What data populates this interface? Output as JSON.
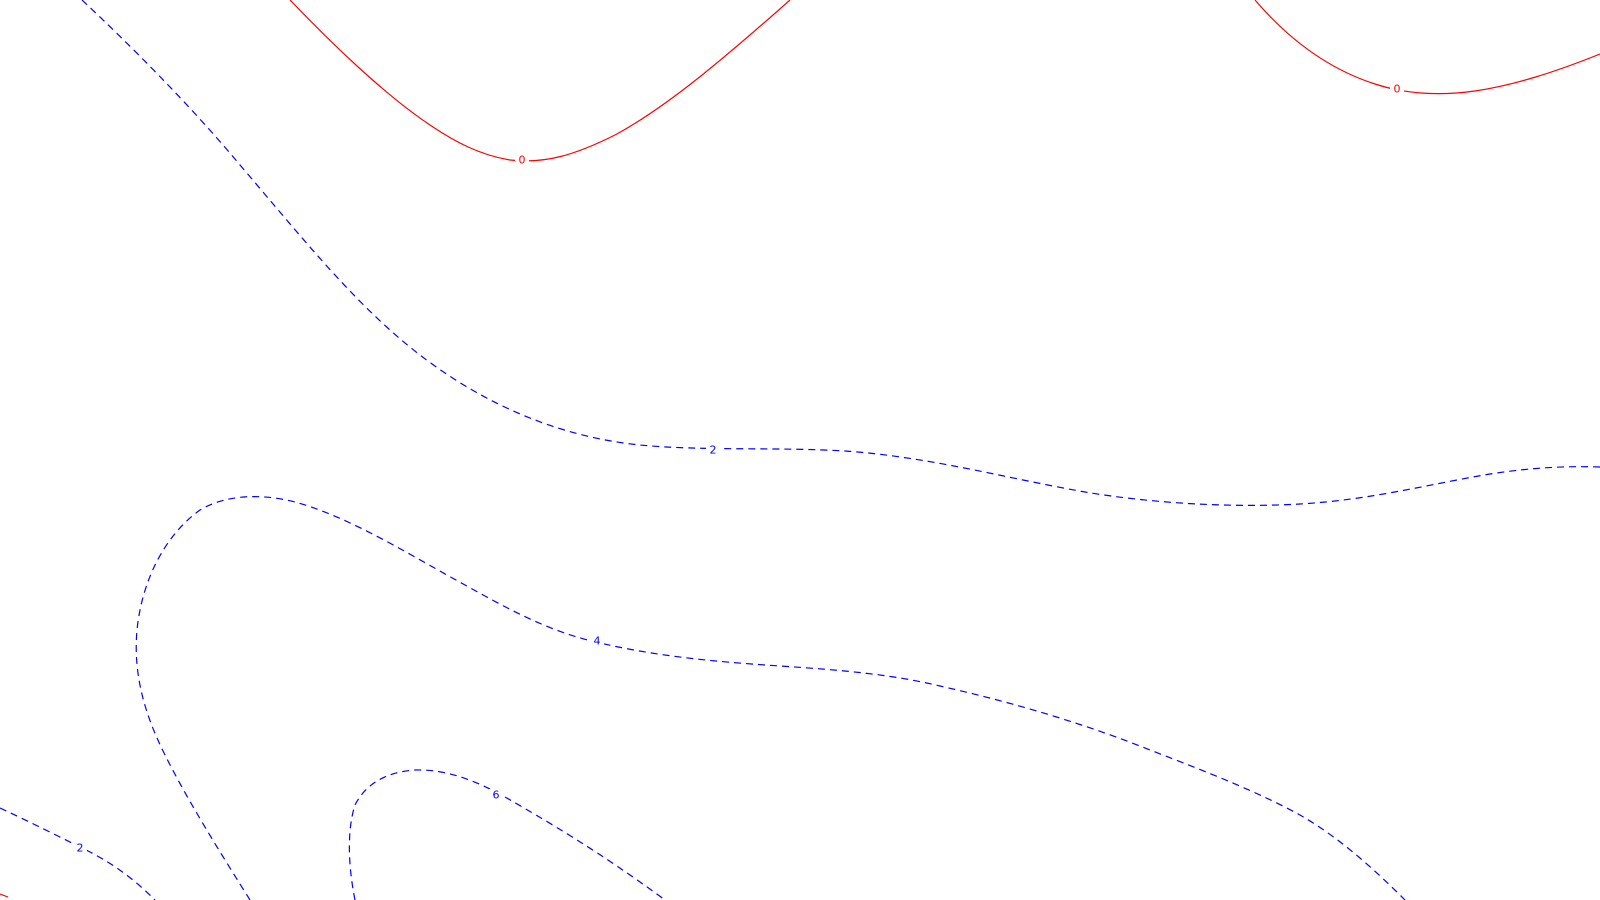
{
  "map": {
    "type": "contour",
    "colors": {
      "background": "#ffffff",
      "zero_level": "#ff0000",
      "positive_level": "#0000ff"
    },
    "contours": [
      {
        "id": "zero-a",
        "level_label": "0",
        "color": "#ff0000",
        "line_style": "solid"
      },
      {
        "id": "zero-b",
        "level_label": "0",
        "color": "#ff0000",
        "line_style": "solid"
      },
      {
        "id": "two-main",
        "level_label": "2",
        "color": "#0000ff",
        "line_style": "dashed"
      },
      {
        "id": "two-corner",
        "level_label": "2",
        "color": "#0000ff",
        "line_style": "dashed"
      },
      {
        "id": "four",
        "level_label": "4",
        "color": "#0000ff",
        "line_style": "dashed"
      },
      {
        "id": "six",
        "level_label": "6",
        "color": "#0000ff",
        "line_style": "dashed"
      },
      {
        "id": "edge-stub",
        "level_label": "",
        "color": "#ff0000",
        "line_style": "solid"
      }
    ]
  }
}
